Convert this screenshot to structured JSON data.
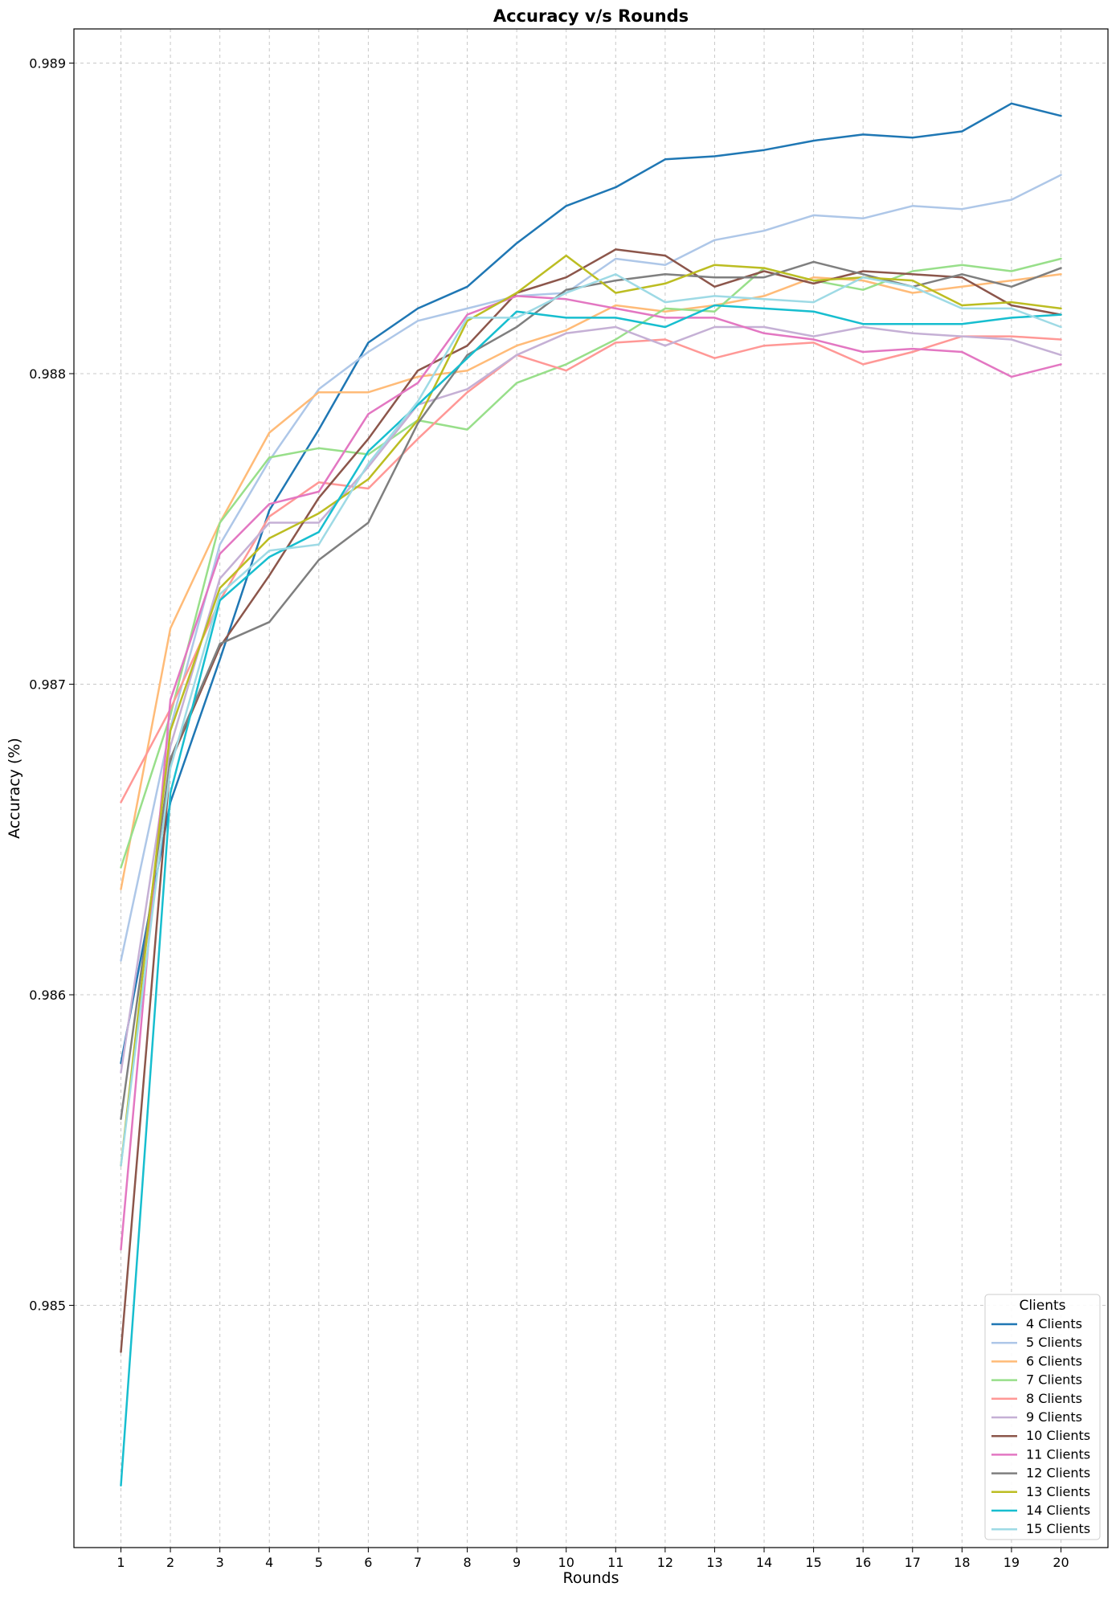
{
  "chart_data": {
    "type": "line",
    "title": "Accuracy v/s Rounds",
    "xlabel": "Rounds",
    "ylabel": "Accuracy (%)",
    "x": [
      1,
      2,
      3,
      4,
      5,
      6,
      7,
      8,
      9,
      10,
      11,
      12,
      13,
      14,
      15,
      16,
      17,
      18,
      19,
      20
    ],
    "xlim": [
      0.05,
      20.95
    ],
    "ylim": [
      0.98422,
      0.98911
    ],
    "yticks": [
      "0.985",
      "0.986",
      "0.987",
      "0.988",
      "0.989"
    ],
    "grid": true,
    "legend_title": "Clients",
    "legend_position": "bottom-right",
    "series": [
      {
        "name": "4 Clients",
        "color": "#1f77b4",
        "values": [
          0.98578,
          0.98662,
          0.98708,
          0.98756,
          0.98782,
          0.9881,
          0.98821,
          0.98828,
          0.98842,
          0.98854,
          0.9886,
          0.98869,
          0.9887,
          0.98872,
          0.98875,
          0.98877,
          0.98876,
          0.98878,
          0.98887,
          0.98883
        ]
      },
      {
        "name": "5 Clients",
        "color": "#aec7e8",
        "values": [
          0.98611,
          0.98686,
          0.98745,
          0.98772,
          0.98795,
          0.98807,
          0.98817,
          0.98821,
          0.98825,
          0.98826,
          0.98837,
          0.98835,
          0.98843,
          0.98846,
          0.98851,
          0.9885,
          0.98854,
          0.98853,
          0.98856,
          0.98864
        ]
      },
      {
        "name": "6 Clients",
        "color": "#ffbb78",
        "values": [
          0.98634,
          0.98718,
          0.98752,
          0.98781,
          0.98794,
          0.98794,
          0.98799,
          0.98801,
          0.98809,
          0.98814,
          0.98822,
          0.9882,
          0.98822,
          0.98825,
          0.98831,
          0.9883,
          0.98826,
          0.98828,
          0.9883,
          0.98832
        ]
      },
      {
        "name": "7 Clients",
        "color": "#98df8a",
        "values": [
          0.98641,
          0.9869,
          0.98752,
          0.98773,
          0.98776,
          0.98774,
          0.98785,
          0.98782,
          0.98797,
          0.98803,
          0.98811,
          0.98821,
          0.9882,
          0.98834,
          0.9883,
          0.98827,
          0.98833,
          0.98835,
          0.98833,
          0.98837
        ]
      },
      {
        "name": "8 Clients",
        "color": "#ff9896",
        "values": [
          0.98662,
          0.98692,
          0.98727,
          0.98754,
          0.98765,
          0.98763,
          0.98779,
          0.98794,
          0.98806,
          0.98801,
          0.9881,
          0.98811,
          0.98805,
          0.98809,
          0.9881,
          0.98803,
          0.98807,
          0.98812,
          0.98812,
          0.98811
        ]
      },
      {
        "name": "9 Clients",
        "color": "#c5b0d5",
        "values": [
          0.98575,
          0.9868,
          0.98734,
          0.98752,
          0.98752,
          0.9877,
          0.9879,
          0.98795,
          0.98806,
          0.98813,
          0.98815,
          0.98809,
          0.98815,
          0.98815,
          0.98812,
          0.98815,
          0.98813,
          0.98812,
          0.98811,
          0.98806
        ]
      },
      {
        "name": "10 Clients",
        "color": "#8c564b",
        "values": [
          0.98485,
          0.98675,
          0.98712,
          0.98735,
          0.9876,
          0.98779,
          0.98801,
          0.98809,
          0.98826,
          0.98831,
          0.9884,
          0.98838,
          0.98828,
          0.98833,
          0.98829,
          0.98833,
          0.98832,
          0.98831,
          0.98822,
          0.98819
        ]
      },
      {
        "name": "11 Clients",
        "color": "#e377c2",
        "values": [
          0.98518,
          0.98695,
          0.98742,
          0.98758,
          0.98762,
          0.98787,
          0.98797,
          0.98819,
          0.98825,
          0.98824,
          0.98821,
          0.98818,
          0.98818,
          0.98813,
          0.98811,
          0.98807,
          0.98808,
          0.98807,
          0.98799,
          0.98803
        ]
      },
      {
        "name": "12 Clients",
        "color": "#7f7f7f",
        "values": [
          0.9856,
          0.98676,
          0.98713,
          0.9872,
          0.9874,
          0.98752,
          0.98784,
          0.98806,
          0.98815,
          0.98827,
          0.9883,
          0.98832,
          0.98831,
          0.98831,
          0.98836,
          0.98832,
          0.98828,
          0.98832,
          0.98828,
          0.98834
        ]
      },
      {
        "name": "13 Clients",
        "color": "#bcbd22",
        "values": [
          0.98545,
          0.98685,
          0.98731,
          0.98747,
          0.98755,
          0.98766,
          0.98785,
          0.98817,
          0.98826,
          0.98838,
          0.98826,
          0.98829,
          0.98835,
          0.98834,
          0.9883,
          0.98831,
          0.9883,
          0.98822,
          0.98823,
          0.98821
        ]
      },
      {
        "name": "14 Clients",
        "color": "#17becf",
        "values": [
          0.98442,
          0.98665,
          0.98727,
          0.98741,
          0.98749,
          0.98775,
          0.9879,
          0.98805,
          0.9882,
          0.98818,
          0.98818,
          0.98815,
          0.98822,
          0.98821,
          0.9882,
          0.98816,
          0.98816,
          0.98816,
          0.98818,
          0.98819
        ]
      },
      {
        "name": "15 Clients",
        "color": "#9edae5",
        "values": [
          0.98545,
          0.98673,
          0.98729,
          0.98743,
          0.98745,
          0.98771,
          0.98791,
          0.98818,
          0.98818,
          0.98826,
          0.98832,
          0.98823,
          0.98825,
          0.98824,
          0.98823,
          0.98831,
          0.98828,
          0.98821,
          0.98821,
          0.98815
        ]
      }
    ]
  }
}
